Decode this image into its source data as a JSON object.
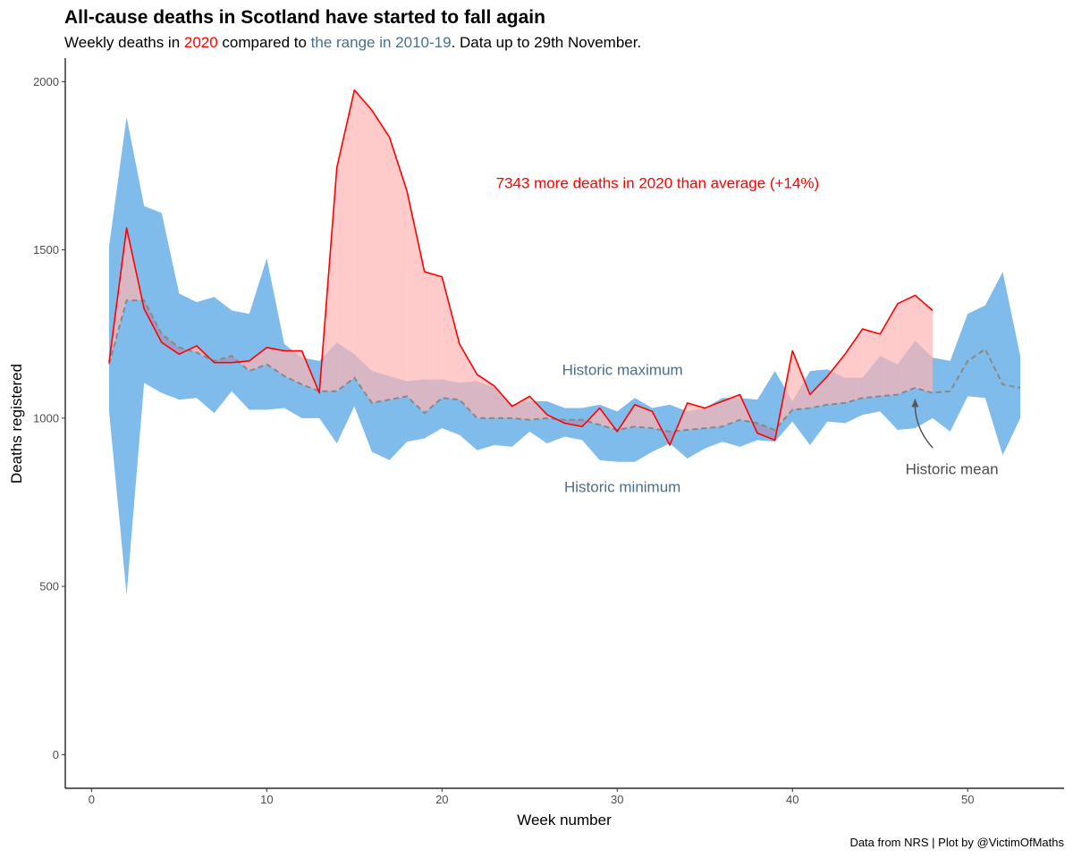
{
  "colors": {
    "year_2020": "#ff0000",
    "historic_range": "#4a9fe3",
    "excess_fill": "#ffb3b3",
    "overlap_fill": "#9e9ac4",
    "historic_label": "#4a6f8a",
    "mean_line": "#888888",
    "mean_label": "#4d4d4d"
  },
  "chart_data": {
    "type": "area",
    "title": "All-cause deaths in Scotland have started to fall again",
    "subtitle": {
      "part1": "Weekly deaths in ",
      "highlight1": "2020",
      "part2": " compared to ",
      "highlight2": "the range in 2010-19",
      "part3": ". Data up to 29th November."
    },
    "xlabel": "Week number",
    "ylabel": "Deaths registered",
    "xlim": [
      -1.5,
      55.5
    ],
    "ylim": [
      -100,
      2070
    ],
    "x_ticks": [
      0,
      10,
      20,
      30,
      40,
      50
    ],
    "y_ticks": [
      0,
      500,
      1000,
      1500,
      2000
    ],
    "grid": false,
    "weeks": [
      1,
      2,
      3,
      4,
      5,
      6,
      7,
      8,
      9,
      10,
      11,
      12,
      13,
      14,
      15,
      16,
      17,
      18,
      19,
      20,
      21,
      22,
      23,
      24,
      25,
      26,
      27,
      28,
      29,
      30,
      31,
      32,
      33,
      34,
      35,
      36,
      37,
      38,
      39,
      40,
      41,
      42,
      43,
      44,
      45,
      46,
      47,
      48,
      49,
      50,
      51,
      52,
      53
    ],
    "series": [
      {
        "name": "Historic maximum",
        "values": [
          1510,
          1895,
          1630,
          1610,
          1370,
          1345,
          1360,
          1320,
          1310,
          1475,
          1220,
          1180,
          1170,
          1225,
          1190,
          1140,
          1125,
          1110,
          1115,
          1115,
          1105,
          1110,
          1090,
          1040,
          1050,
          1050,
          1030,
          1030,
          1040,
          1020,
          1060,
          1030,
          1040,
          1020,
          1030,
          1060,
          1060,
          1055,
          1140,
          1050,
          1140,
          1145,
          1120,
          1120,
          1185,
          1160,
          1230,
          1180,
          1170,
          1310,
          1335,
          1435,
          1185
        ]
      },
      {
        "name": "Historic minimum",
        "values": [
          1020,
          475,
          1105,
          1075,
          1055,
          1060,
          1015,
          1080,
          1025,
          1025,
          1030,
          1000,
          1000,
          925,
          1035,
          900,
          875,
          930,
          940,
          970,
          950,
          905,
          920,
          915,
          960,
          925,
          945,
          935,
          875,
          870,
          870,
          900,
          925,
          880,
          910,
          930,
          915,
          935,
          930,
          990,
          920,
          990,
          985,
          1010,
          1020,
          965,
          970,
          1000,
          960,
          1065,
          1060,
          890,
          1000
        ]
      },
      {
        "name": "Historic mean",
        "values": [
          1160,
          1350,
          1350,
          1250,
          1210,
          1195,
          1170,
          1185,
          1140,
          1160,
          1125,
          1100,
          1080,
          1080,
          1120,
          1045,
          1055,
          1065,
          1015,
          1060,
          1055,
          1000,
          1000,
          1000,
          995,
          1000,
          995,
          995,
          980,
          965,
          975,
          970,
          960,
          965,
          970,
          975,
          995,
          985,
          965,
          1025,
          1030,
          1040,
          1045,
          1060,
          1065,
          1070,
          1090,
          1075,
          1080,
          1170,
          1205,
          1100,
          1090
        ]
      },
      {
        "name": "2020",
        "values": [
          1165,
          1565,
          1325,
          1225,
          1190,
          1215,
          1165,
          1165,
          1170,
          1210,
          1200,
          1200,
          1075,
          1745,
          1975,
          1915,
          1835,
          1675,
          1435,
          1420,
          1220,
          1130,
          1095,
          1035,
          1065,
          1010,
          985,
          975,
          1030,
          960,
          1040,
          1020,
          920,
          1045,
          1030,
          1050,
          1070,
          955,
          935,
          1200,
          1070,
          1125,
          1190,
          1265,
          1250,
          1340,
          1365,
          1320
        ]
      }
    ],
    "annotations": {
      "excess": "7343 more deaths in 2020 than average (+14%)",
      "historic_max": "Historic maximum",
      "historic_min": "Historic minimum",
      "historic_mean": "Historic mean"
    },
    "caption": "Data from NRS | Plot by @VictimOfMaths"
  }
}
